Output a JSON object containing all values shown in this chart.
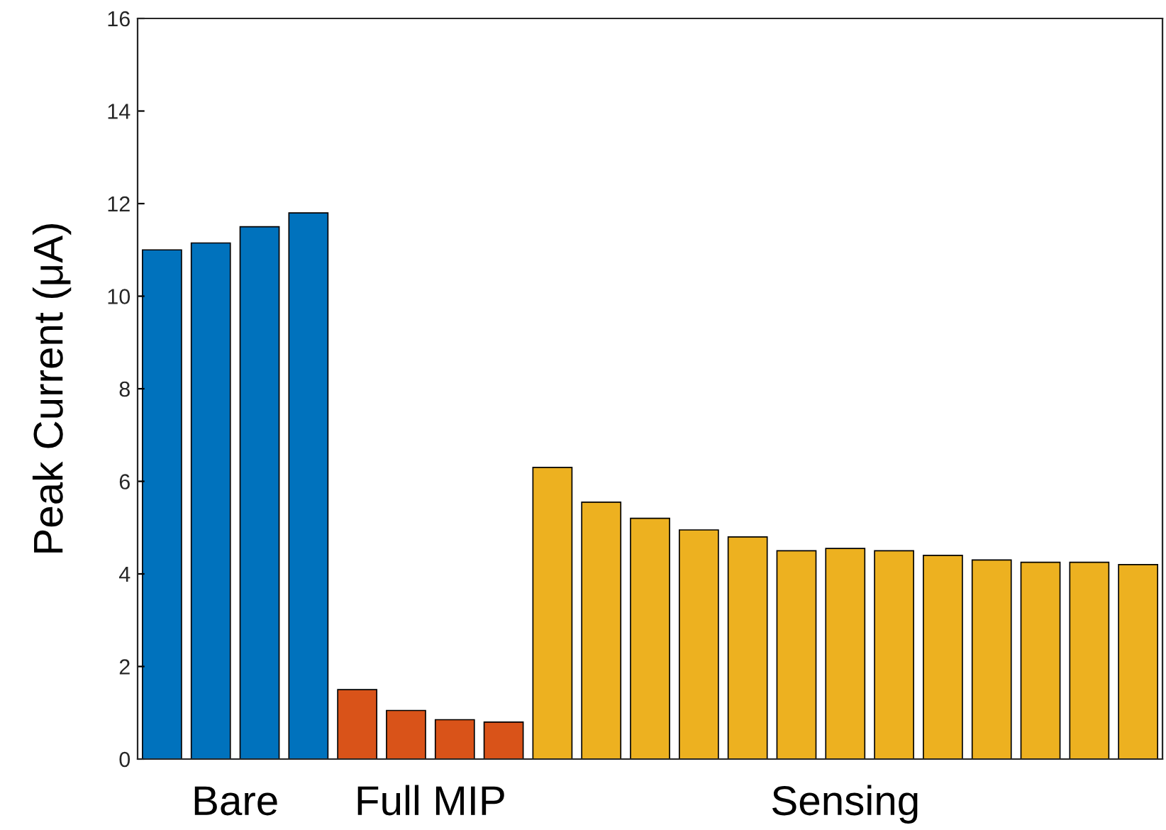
{
  "chart_data": {
    "type": "bar",
    "ylabel": "Peak Current (μA)",
    "categories": [
      null,
      null,
      null,
      null,
      null,
      null,
      null,
      null,
      null,
      null,
      null,
      null,
      null,
      null,
      null,
      null,
      null,
      null,
      null,
      null,
      null
    ],
    "values": [
      11.0,
      11.15,
      11.5,
      11.8,
      1.5,
      1.05,
      0.85,
      0.8,
      6.3,
      5.55,
      5.2,
      4.95,
      4.8,
      4.5,
      4.55,
      4.5,
      4.4,
      4.3,
      4.25,
      4.25,
      4.2
    ],
    "colors": [
      "#0072bd",
      "#0072bd",
      "#0072bd",
      "#0072bd",
      "#d95319",
      "#d95319",
      "#d95319",
      "#d95319",
      "#edb120",
      "#edb120",
      "#edb120",
      "#edb120",
      "#edb120",
      "#edb120",
      "#edb120",
      "#edb120",
      "#edb120",
      "#edb120",
      "#edb120",
      "#edb120",
      "#edb120"
    ],
    "annotations": [
      "Bare",
      "Full MIP",
      "Sensing"
    ],
    "ylim": [
      0,
      16
    ],
    "yticks": [
      0,
      2,
      4,
      6,
      8,
      10,
      12,
      14,
      16
    ],
    "grid": false,
    "legend": false
  }
}
